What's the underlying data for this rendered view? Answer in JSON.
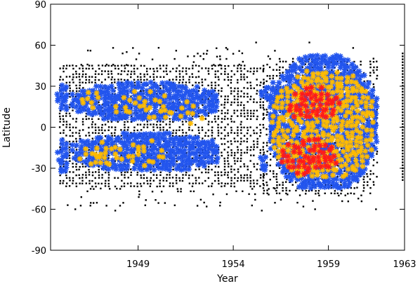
{
  "chart_data": {
    "type": "scatter",
    "title": "",
    "xlabel": "Year",
    "ylabel": "Latitude",
    "xlim": [
      1944.4,
      1963
    ],
    "ylim": [
      -90,
      90
    ],
    "x_ticks": [
      1949,
      1954,
      1959,
      1963
    ],
    "y_ticks": [
      -90,
      -60,
      -30,
      0,
      30,
      60,
      90
    ],
    "grid": false,
    "legend": "none",
    "colors": {
      "small": "#000000",
      "medium": "#2255ee",
      "large": "#ffbb00",
      "largest": "#ff1a1a"
    },
    "series": [
      {
        "key": "small",
        "marker": "square",
        "regions": [
          {
            "x": [
              1944.9,
              1955.6
            ],
            "y": [
              -45,
              45
            ],
            "density": 1.0
          },
          {
            "x": [
              1955.6,
              1961.6
            ],
            "y": [
              -50,
              50
            ],
            "density": 0.8
          },
          {
            "x": [
              1946.0,
              1957.5
            ],
            "y": [
              -58,
              -45
            ],
            "density": 0.18
          },
          {
            "x": [
              1946.0,
              1956.5
            ],
            "y": [
              45,
              58
            ],
            "density": 0.15
          },
          {
            "x": [
              1957.0,
              1961.6
            ],
            "y": [
              -60,
              -50
            ],
            "density": 0.12
          }
        ],
        "points": [
          [
            1945.3,
            -57
          ],
          [
            1945.7,
            -60
          ],
          [
            1947.8,
            -61
          ],
          [
            1952.6,
            -58
          ],
          [
            1955.5,
            -61
          ],
          [
            1958.3,
            -60
          ],
          [
            1961.5,
            -60
          ],
          [
            1955.2,
            62
          ],
          [
            1960.3,
            58
          ],
          [
            1958.0,
            62
          ],
          [
            1948.4,
            55
          ],
          [
            1951.0,
            56
          ],
          [
            1953.7,
            57
          ]
        ],
        "columns": [
          {
            "x": 1962.9,
            "y_from": -40,
            "y_to": 54
          }
        ]
      },
      {
        "key": "medium",
        "marker": "star",
        "regions": [
          {
            "x": [
              1944.8,
              1945.4
            ],
            "y": [
              -34,
              -10
            ],
            "density": 1.0
          },
          {
            "x": [
              1944.8,
              1945.4
            ],
            "y": [
              12,
              30
            ],
            "density": 1.0
          },
          {
            "x": [
              1945.6,
              1953.3
            ],
            "y": [
              -32,
              -5
            ],
            "density": 1.0
          },
          {
            "x": [
              1945.6,
              1953.3
            ],
            "y": [
              5,
              32
            ],
            "density": 1.0
          },
          {
            "x": [
              1955.5,
              1956.4
            ],
            "y": [
              18,
              32
            ],
            "density": 1.0
          },
          {
            "x": [
              1956.0,
              1961.5
            ],
            "y": [
              -46,
              52
            ],
            "density": 1.0
          },
          {
            "x": [
              1955.3,
              1955.9
            ],
            "y": [
              -34,
              -22
            ],
            "density": 0.7
          }
        ]
      },
      {
        "key": "large",
        "marker": "star",
        "regions": [
          {
            "x": [
              1946.1,
              1947.0
            ],
            "y": [
              12,
              28
            ],
            "density": 0.8
          },
          {
            "x": [
              1946.0,
              1948.2
            ],
            "y": [
              -28,
              -12
            ],
            "density": 0.8
          },
          {
            "x": [
              1947.8,
              1950.8
            ],
            "y": [
              5,
              26
            ],
            "density": 0.45
          },
          {
            "x": [
              1948.5,
              1950.4
            ],
            "y": [
              -30,
              -10
            ],
            "density": 0.4
          },
          {
            "x": [
              1950.8,
              1952.4
            ],
            "y": [
              0,
              18
            ],
            "density": 0.3
          },
          {
            "x": [
              1956.1,
              1961.4
            ],
            "y": [
              -38,
              40
            ],
            "density": 1.0
          }
        ]
      },
      {
        "key": "largest",
        "marker": "star",
        "regions": [
          {
            "x": [
              1957.0,
              1959.6
            ],
            "y": [
              5,
              28
            ],
            "density": 1.0
          },
          {
            "x": [
              1956.6,
              1959.4
            ],
            "y": [
              -34,
              -10
            ],
            "density": 1.0
          }
        ]
      }
    ]
  }
}
